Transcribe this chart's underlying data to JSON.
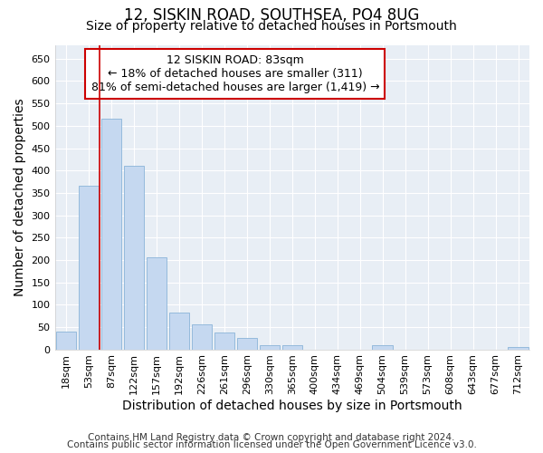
{
  "title": "12, SISKIN ROAD, SOUTHSEA, PO4 8UG",
  "subtitle": "Size of property relative to detached houses in Portsmouth",
  "xlabel": "Distribution of detached houses by size in Portsmouth",
  "ylabel": "Number of detached properties",
  "bar_color": "#c5d8f0",
  "bar_edge_color": "#8ab4d8",
  "bin_labels": [
    "18sqm",
    "53sqm",
    "87sqm",
    "122sqm",
    "157sqm",
    "192sqm",
    "226sqm",
    "261sqm",
    "296sqm",
    "330sqm",
    "365sqm",
    "400sqm",
    "434sqm",
    "469sqm",
    "504sqm",
    "539sqm",
    "573sqm",
    "608sqm",
    "643sqm",
    "677sqm",
    "712sqm"
  ],
  "bar_heights": [
    40,
    365,
    515,
    410,
    205,
    83,
    55,
    38,
    25,
    10,
    9,
    0,
    0,
    0,
    10,
    0,
    0,
    0,
    0,
    0,
    5
  ],
  "ylim": [
    0,
    680
  ],
  "yticks": [
    0,
    50,
    100,
    150,
    200,
    250,
    300,
    350,
    400,
    450,
    500,
    550,
    600,
    650
  ],
  "vline_x": 1.5,
  "annotation_text": "12 SISKIN ROAD: 83sqm\n← 18% of detached houses are smaller (311)\n81% of semi-detached houses are larger (1,419) →",
  "annotation_box_color": "#ffffff",
  "annotation_box_edge": "#cc0000",
  "vline_color": "#cc0000",
  "footer1": "Contains HM Land Registry data © Crown copyright and database right 2024.",
  "footer2": "Contains public sector information licensed under the Open Government Licence v3.0.",
  "background_color": "#ffffff",
  "axes_background": "#e8eef5",
  "grid_color": "#ffffff",
  "title_fontsize": 12,
  "subtitle_fontsize": 10,
  "axis_label_fontsize": 10,
  "tick_fontsize": 8,
  "annotation_fontsize": 9,
  "footer_fontsize": 7.5
}
